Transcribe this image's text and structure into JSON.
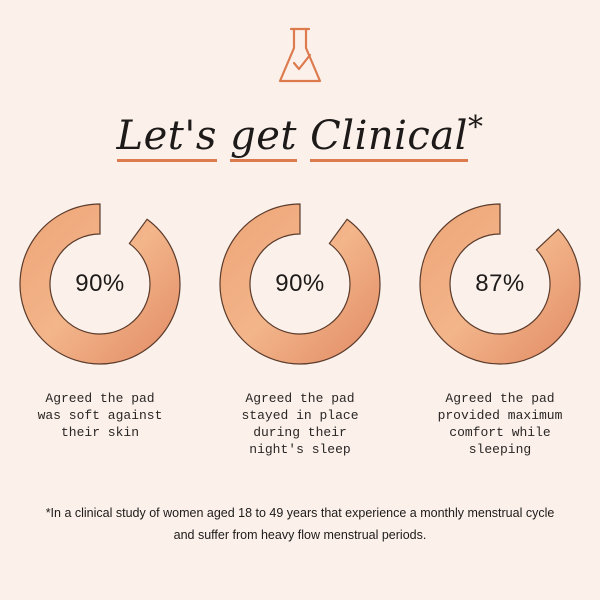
{
  "header": {
    "icon": "flask-check-icon",
    "accent": "#dd7b4e",
    "title_words": [
      "Let's",
      "get",
      "Clinical"
    ],
    "title_suffix": "*"
  },
  "stats": [
    {
      "value": "90%",
      "fraction": 0.9,
      "caption": "Agreed the pad\nwas soft against\ntheir skin"
    },
    {
      "value": "90%",
      "fraction": 0.9,
      "caption": "Agreed the pad\nstayed in place\nduring their\nnight's sleep"
    },
    {
      "value": "87%",
      "fraction": 0.87,
      "caption": "Agreed the pad\nprovided maximum\ncomfort while\nsleeping"
    }
  ],
  "footnote": "*In a clinical study of women aged 18 to 49 years that experience a monthly menstrual cycle and suffer from heavy flow menstrual periods."
}
